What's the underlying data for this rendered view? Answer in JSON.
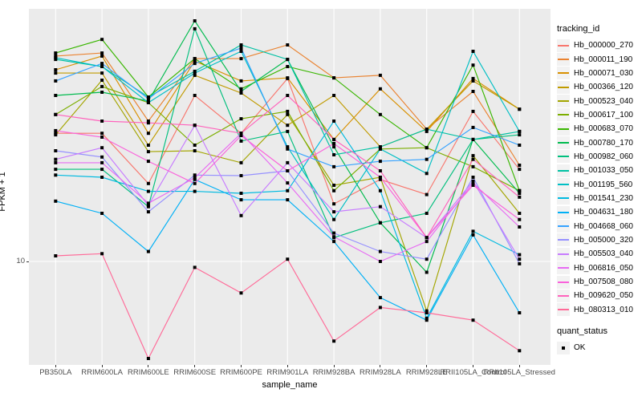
{
  "figure": {
    "y_axis_title": "FPKM + 1",
    "x_axis_title": "sample_name",
    "y_tick_label": "10",
    "legend": {
      "tracking_title": "tracking_id",
      "quant_title": "quant_status",
      "quant_entries": [
        {
          "label": "OK",
          "marker": "filled-black-square"
        }
      ]
    },
    "colors": {
      "panel_background": "#EBEBEB",
      "gridline": "#FFFFFF",
      "point": "#000000",
      "tick_text": "#4D4D4D",
      "axis_title_text": "#000000",
      "legend_key_background": "#F2F2F2",
      "tick_mark": "#333333"
    }
  },
  "chart_data": {
    "type": "line",
    "title": "",
    "xlabel": "sample_name",
    "ylabel": "FPKM + 1",
    "y_scale": "log10",
    "y_axis_breaks": [
      10
    ],
    "ylim": [
      3.9,
      96
    ],
    "grid": "major-only",
    "legend_position": "right",
    "point_marker": "black filled square (quant_status = OK)",
    "categories": [
      "PB350LA",
      "RRIM600LA",
      "RRIM600LE",
      "RRIM600SE",
      "RRIM600PE",
      "RRIM901LA",
      "RRIM928BA",
      "RRIM928LA",
      "RRIM928LE",
      "RRII105LA_Control",
      "RRII105LA_Stressed"
    ],
    "series": [
      {
        "name": "Hb_000000_270",
        "color": "#F8766D",
        "values": [
          30.5,
          30.5,
          19.7,
          42.4,
          30.5,
          49.1,
          16.5,
          20.4,
          17.9,
          36.9,
          22.3
        ]
      },
      {
        "name": "Hb_000011_190",
        "color": "#EA8331",
        "values": [
          59.7,
          61.3,
          33.9,
          58.4,
          58.4,
          65.8,
          49.4,
          50.5,
          31.6,
          43.9,
          23.1
        ]
      },
      {
        "name": "Hb_000071_030",
        "color": "#D89000",
        "values": [
          53.0,
          59.7,
          30.5,
          57.2,
          48.1,
          49.4,
          28.9,
          44.9,
          31.0,
          49.1,
          37.6
        ]
      },
      {
        "name": "Hb_000366_120",
        "color": "#C09B00",
        "values": [
          51.5,
          51.5,
          27.5,
          50.5,
          43.3,
          32.7,
          42.4,
          27.1,
          31.6,
          48.1,
          37.6
        ]
      },
      {
        "name": "Hb_000523_040",
        "color": "#A3A500",
        "values": [
          30.1,
          48.4,
          26.0,
          26.2,
          23.6,
          35.9,
          19.4,
          20.8,
          6.5,
          25.1,
          15.2
        ]
      },
      {
        "name": "Hb_000617_100",
        "color": "#7CAE00",
        "values": [
          35.9,
          45.8,
          39.8,
          27.5,
          34.6,
          36.9,
          18.5,
          26.6,
          26.9,
          22.8,
          18.5
        ]
      },
      {
        "name": "Hb_000683_070",
        "color": "#39B600",
        "values": [
          61.3,
          69.0,
          41.8,
          58.4,
          44.9,
          54.5,
          49.4,
          35.9,
          26.9,
          55.2,
          18.5
        ]
      },
      {
        "name": "Hb_000780_170",
        "color": "#00BB4E",
        "values": [
          42.4,
          43.6,
          40.4,
          81.1,
          43.9,
          58.0,
          27.1,
          14.0,
          9.1,
          28.9,
          18.1
        ]
      },
      {
        "name": "Hb_000982_060",
        "color": "#00BF7D",
        "values": [
          22.3,
          22.3,
          16.1,
          75.7,
          28.5,
          31.0,
          12.3,
          14.0,
          15.2,
          28.9,
          30.1
        ]
      },
      {
        "name": "Hb_001033_050",
        "color": "#00C1A3",
        "values": [
          58.0,
          54.5,
          41.8,
          52.3,
          65.8,
          58.0,
          25.3,
          27.1,
          31.6,
          28.9,
          31.0
        ]
      },
      {
        "name": "Hb_001195_560",
        "color": "#00BFC4",
        "values": [
          58.9,
          54.5,
          39.8,
          51.5,
          62.2,
          27.1,
          14.4,
          26.6,
          21.5,
          62.2,
          31.0
        ]
      },
      {
        "name": "Hb_001541_230",
        "color": "#00BAE0",
        "values": [
          21.2,
          20.8,
          18.4,
          18.4,
          18.1,
          18.5,
          33.9,
          18.5,
          6.1,
          13.0,
          10.6
        ]
      },
      {
        "name": "Hb_004631_180",
        "color": "#00B0F6",
        "values": [
          16.9,
          15.2,
          10.9,
          20.4,
          17.1,
          17.1,
          11.9,
          7.3,
          6.0,
          12.6,
          6.4
        ]
      },
      {
        "name": "Hb_004668_060",
        "color": "#35A2FF",
        "values": [
          48.1,
          56.0,
          41.2,
          56.0,
          64.0,
          26.6,
          22.8,
          23.9,
          24.3,
          32.1,
          27.5
        ]
      },
      {
        "name": "Hb_005000_320",
        "color": "#9590FF",
        "values": [
          26.2,
          24.8,
          15.4,
          21.2,
          21.1,
          22.0,
          12.8,
          10.9,
          10.2,
          20.8,
          9.8
        ]
      },
      {
        "name": "Hb_005503_040",
        "color": "#C77CFF",
        "values": [
          24.3,
          26.9,
          16.3,
          32.7,
          14.9,
          23.6,
          15.4,
          16.1,
          12.3,
          20.1,
          10.2
        ]
      },
      {
        "name": "Hb_006816_050",
        "color": "#E76BF3",
        "values": [
          23.6,
          23.6,
          16.6,
          20.7,
          30.5,
          19.8,
          12.4,
          10.0,
          11.9,
          19.8,
          13.5
        ]
      },
      {
        "name": "Hb_007508_080",
        "color": "#FA62DB",
        "values": [
          31.2,
          29.5,
          23.9,
          19.7,
          29.9,
          22.0,
          27.9,
          20.8,
          12.3,
          19.4,
          14.4
        ]
      },
      {
        "name": "Hb_009620_050",
        "color": "#FF62BC",
        "values": [
          35.9,
          33.9,
          33.4,
          32.7,
          30.5,
          42.4,
          28.9,
          22.0,
          12.3,
          24.3,
          17.5
        ]
      },
      {
        "name": "Hb_080313_010",
        "color": "#FF6A98",
        "values": [
          10.5,
          10.7,
          4.3,
          9.5,
          7.6,
          10.2,
          5.0,
          6.7,
          6.4,
          6.0,
          4.6
        ]
      }
    ]
  }
}
